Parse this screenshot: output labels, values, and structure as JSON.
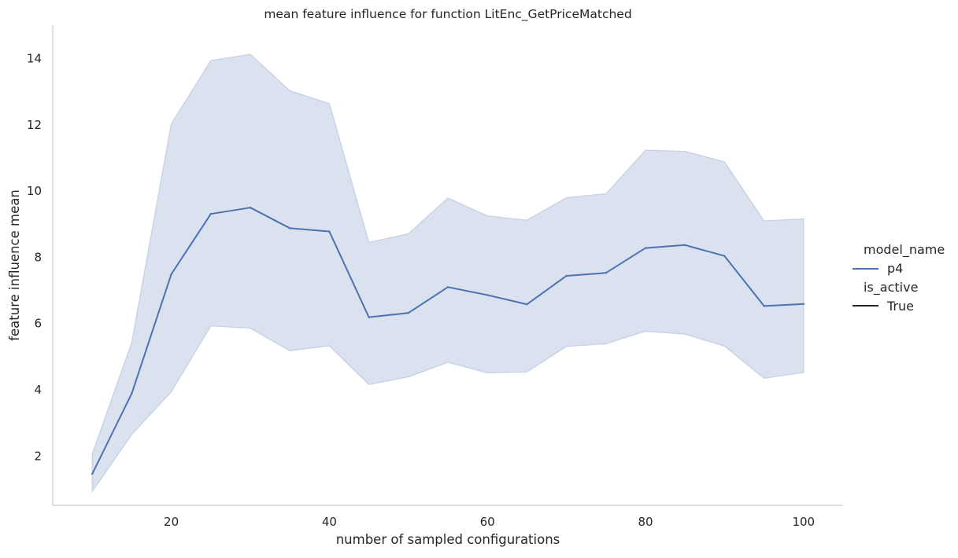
{
  "chart_data": {
    "type": "line",
    "title": "mean feature influence for function LitEnc_GetPriceMatched",
    "xlabel": "number of sampled configurations",
    "ylabel": "feature influence mean",
    "xlim": [
      5,
      105
    ],
    "ylim": [
      0.5,
      15.0
    ],
    "x_ticks": [
      20,
      40,
      60,
      80,
      100
    ],
    "y_ticks": [
      2,
      4,
      6,
      8,
      10,
      12,
      14
    ],
    "grid": false,
    "legend_placement": "right",
    "x": [
      10,
      15,
      20,
      25,
      30,
      35,
      40,
      45,
      50,
      55,
      60,
      65,
      70,
      75,
      80,
      85,
      90,
      95,
      100
    ],
    "series": [
      {
        "name": "p4",
        "color": "#4c72b0",
        "values": [
          1.45,
          3.88,
          7.48,
          9.3,
          9.49,
          8.87,
          8.77,
          6.18,
          6.31,
          7.09,
          6.85,
          6.57,
          7.43,
          7.52,
          8.27,
          8.36,
          8.03,
          6.52,
          6.58
        ],
        "ci_upper": [
          2.05,
          5.42,
          12.02,
          13.93,
          14.12,
          13.02,
          12.63,
          8.44,
          8.7,
          9.78,
          9.24,
          9.11,
          9.79,
          9.91,
          11.22,
          11.19,
          10.87,
          9.09,
          9.15
        ],
        "ci_lower": [
          0.92,
          2.64,
          3.93,
          5.92,
          5.85,
          5.17,
          5.32,
          4.15,
          4.38,
          4.82,
          4.5,
          4.53,
          5.3,
          5.38,
          5.76,
          5.67,
          5.31,
          4.34,
          4.51
        ],
        "band_color": "#c4cfe5"
      }
    ],
    "legend": {
      "hue_title": "model_name",
      "hue_entries": [
        {
          "label": "p4",
          "color": "#4c72b0"
        }
      ],
      "style_title": "is_active",
      "style_entries": [
        {
          "label": "True",
          "color": "#262626"
        }
      ]
    }
  }
}
